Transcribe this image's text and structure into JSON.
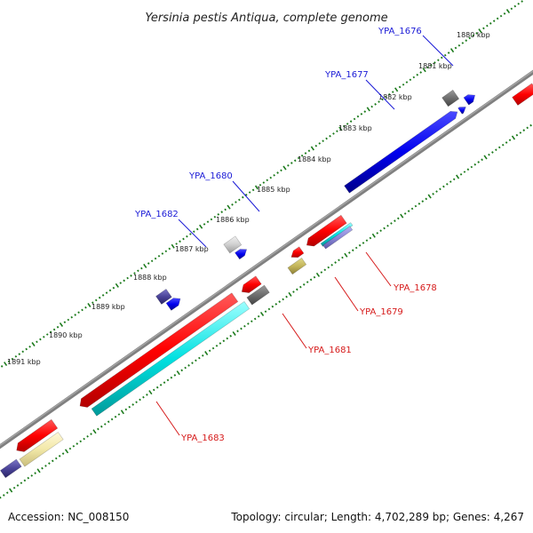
{
  "title": "Yersinia pestis Antiqua, complete genome",
  "footer": {
    "accession": "Accession: NC_008150",
    "topology": "Topology: circular; Length: 4,702,289 bp; Genes: 4,267"
  },
  "colors": {
    "forward_label": "#1a1ad6",
    "reverse_label": "#d61a1a",
    "backbone": "#808080",
    "tick": "#1b7a1b"
  },
  "ticks": [
    {
      "label": "1880 kbp"
    },
    {
      "label": "1881 kbp"
    },
    {
      "label": "1882 kbp"
    },
    {
      "label": "1883 kbp"
    },
    {
      "label": "1884 kbp"
    },
    {
      "label": "1885 kbp"
    },
    {
      "label": "1886 kbp"
    },
    {
      "label": "1887 kbp"
    },
    {
      "label": "1888 kbp"
    },
    {
      "label": "1889 kbp"
    },
    {
      "label": "1890 kbp"
    },
    {
      "label": "1891 kbp"
    }
  ],
  "genes_forward": [
    {
      "name": "YPA_1676"
    },
    {
      "name": "YPA_1677"
    },
    {
      "name": "YPA_1680"
    },
    {
      "name": "YPA_1682"
    }
  ],
  "genes_reverse": [
    {
      "name": "YPA_1678"
    },
    {
      "name": "YPA_1679"
    },
    {
      "name": "YPA_1681"
    },
    {
      "name": "YPA_1683"
    }
  ]
}
